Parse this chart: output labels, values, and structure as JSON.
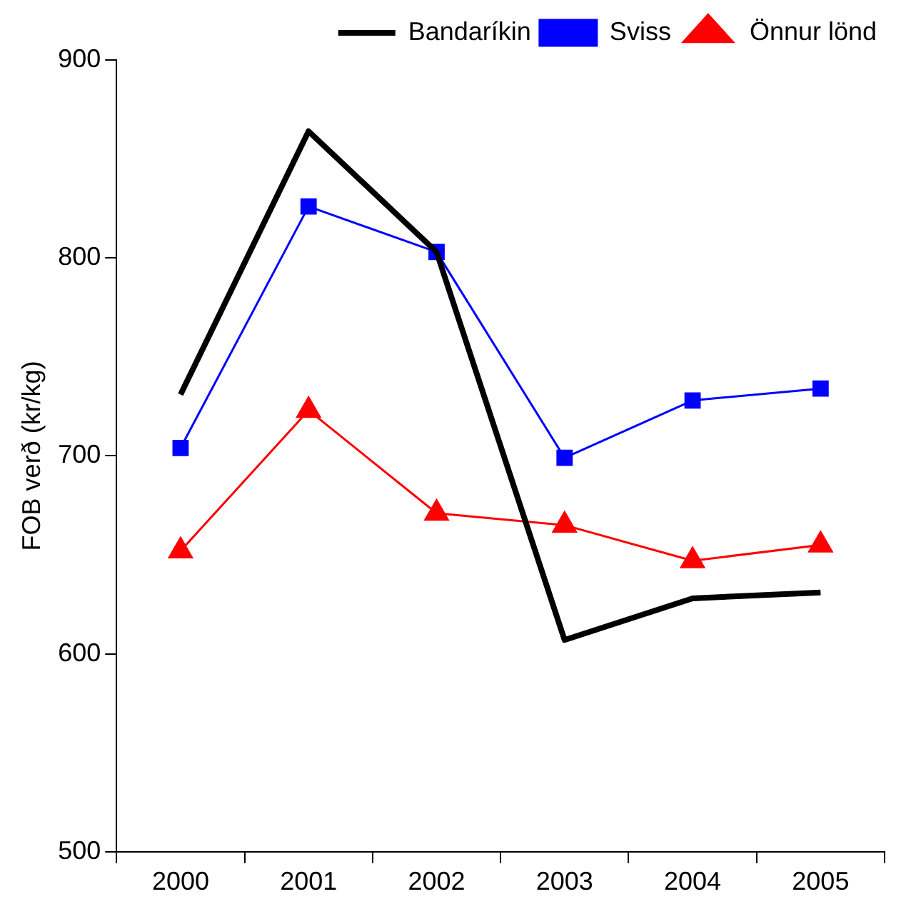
{
  "chart_data": {
    "type": "line",
    "ylabel": "FOB verð (kr/kg)",
    "categories": [
      "2000",
      "2001",
      "2002",
      "2003",
      "2004",
      "2005"
    ],
    "series": [
      {
        "name": "Bandaríkin",
        "color": "#000000",
        "values": [
          731,
          864,
          803,
          607,
          628,
          631
        ],
        "marker": "none"
      },
      {
        "name": "Sviss",
        "color": "#0000ff",
        "values": [
          704,
          826,
          803,
          699,
          728,
          734
        ],
        "marker": "square"
      },
      {
        "name": "Önnur lönd",
        "color": "#ff0000",
        "values": [
          652,
          723,
          671,
          665,
          647,
          655
        ],
        "marker": "triangle"
      }
    ],
    "ylim": [
      500,
      900
    ],
    "yticks": [
      500,
      600,
      700,
      800,
      900
    ],
    "grid": false,
    "legend": "top right"
  }
}
